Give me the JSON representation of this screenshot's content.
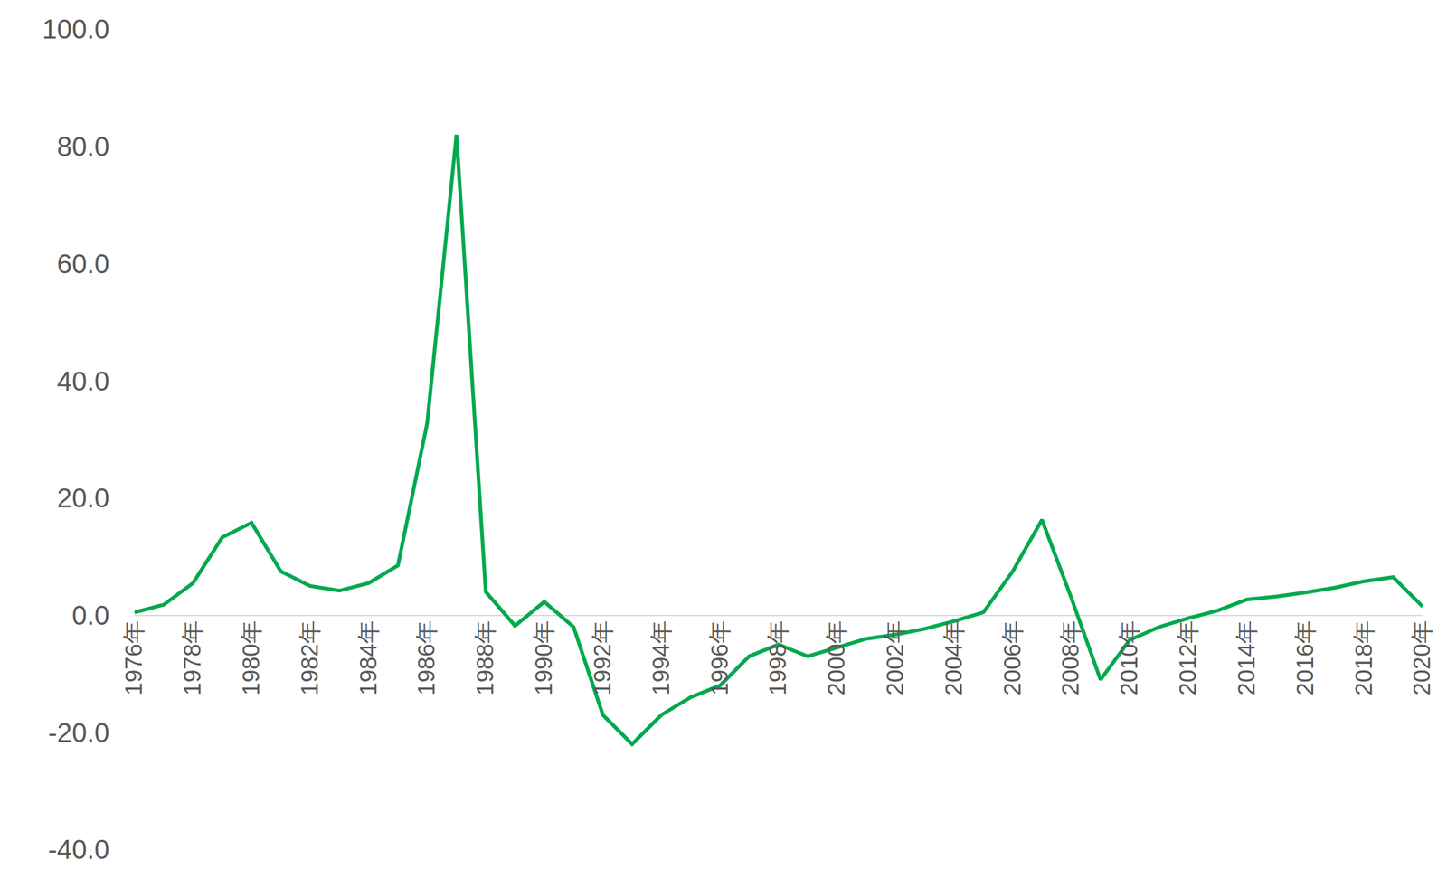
{
  "chart_data": {
    "type": "line",
    "categories": [
      "1976年",
      null,
      "1978年",
      null,
      "1980年",
      null,
      "1982年",
      null,
      "1984年",
      null,
      "1986年",
      null,
      "1988年",
      null,
      "1990年",
      null,
      "1992年",
      null,
      "1994年",
      null,
      "1996年",
      null,
      "1998年",
      null,
      "2000年",
      null,
      "2002年",
      null,
      "2004年",
      null,
      "2006年",
      null,
      "2008年",
      null,
      "2010年",
      null,
      "2012年",
      null,
      "2014年",
      null,
      "2016年",
      null,
      "2018年",
      null,
      "2020年"
    ],
    "values": [
      0.5,
      1.8,
      5.5,
      13.3,
      15.8,
      7.5,
      5.0,
      4.2,
      5.5,
      8.5,
      32.8,
      82.0,
      4.0,
      -1.8,
      2.3,
      -2.0,
      -17.0,
      -22.0,
      -17.0,
      -14.0,
      -12.0,
      -7.0,
      -5.0,
      -7.0,
      -5.5,
      -4.0,
      -3.3,
      -2.3,
      -1.0,
      0.5,
      7.5,
      16.3,
      3.0,
      -11.0,
      -4.2,
      -2.0,
      -0.5,
      0.8,
      2.7,
      3.2,
      3.9,
      4.7,
      5.8,
      6.5,
      1.5
    ],
    "color": "#00a94f",
    "ylim": [
      -40,
      100
    ],
    "yticks": [
      {
        "value": -40,
        "label": "-40.0"
      },
      {
        "value": -20,
        "label": "-20.0"
      },
      {
        "value": 0,
        "label": "0.0"
      },
      {
        "value": 20,
        "label": "20.0"
      },
      {
        "value": 40,
        "label": "40.0"
      },
      {
        "value": 60,
        "label": "60.0"
      },
      {
        "value": 80,
        "label": "80.0"
      },
      {
        "value": 100,
        "label": "100.0"
      }
    ],
    "grid": false
  }
}
